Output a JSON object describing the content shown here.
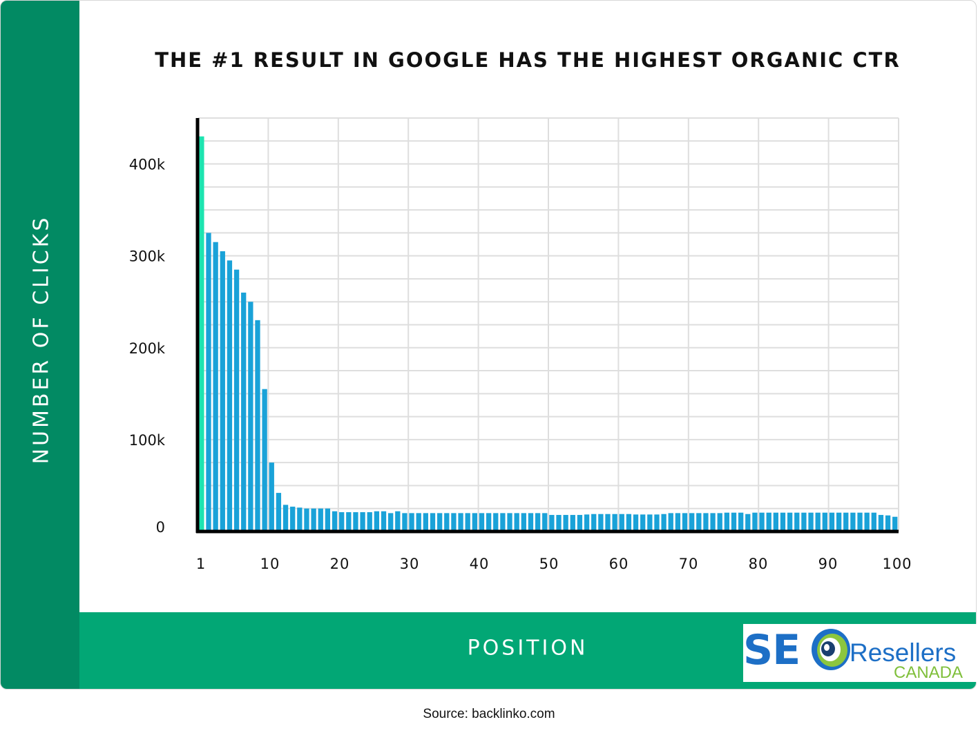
{
  "chart_data": {
    "type": "bar",
    "title": "THE #1 RESULT IN GOOGLE HAS THE HIGHEST ORGANIC CTR",
    "xlabel": "POSITION",
    "ylabel": "NUMBER OF CLICKS",
    "ylim": [
      0,
      450000
    ],
    "xlim": [
      1,
      100
    ],
    "grid": true,
    "legend": "none",
    "x_tick_labels": [
      "1",
      "10",
      "20",
      "30",
      "40",
      "50",
      "60",
      "70",
      "80",
      "90",
      "100"
    ],
    "y_ticks": [
      {
        "value": 0,
        "label": "0"
      },
      {
        "value": 100000,
        "label": "100k"
      },
      {
        "value": 200000,
        "label": "200k"
      },
      {
        "value": 300000,
        "label": "300k"
      },
      {
        "value": 400000,
        "label": "400k"
      }
    ],
    "colors": {
      "first_bar": "#1de4b0",
      "bars": "#1aa2d8",
      "axis": "#000000",
      "grid": "#dedede"
    },
    "x": [
      1,
      2,
      3,
      4,
      5,
      6,
      7,
      8,
      9,
      10,
      11,
      12,
      13,
      14,
      15,
      16,
      17,
      18,
      19,
      20,
      21,
      22,
      23,
      24,
      25,
      26,
      27,
      28,
      29,
      30,
      31,
      32,
      33,
      34,
      35,
      36,
      37,
      38,
      39,
      40,
      41,
      42,
      43,
      44,
      45,
      46,
      47,
      48,
      49,
      50,
      51,
      52,
      53,
      54,
      55,
      56,
      57,
      58,
      59,
      60,
      61,
      62,
      63,
      64,
      65,
      66,
      67,
      68,
      69,
      70,
      71,
      72,
      73,
      74,
      75,
      76,
      77,
      78,
      79,
      80,
      81,
      82,
      83,
      84,
      85,
      86,
      87,
      88,
      89,
      90,
      91,
      92,
      93,
      94,
      95,
      96,
      97,
      98,
      99,
      100
    ],
    "values": [
      430000,
      325000,
      315000,
      305000,
      295000,
      285000,
      260000,
      250000,
      230000,
      155000,
      75000,
      42000,
      29000,
      27000,
      26000,
      25000,
      25000,
      25000,
      25000,
      22000,
      21000,
      21000,
      21000,
      21000,
      21000,
      22000,
      22000,
      20000,
      22000,
      20000,
      20000,
      20000,
      20000,
      20000,
      20000,
      20000,
      20000,
      20000,
      20000,
      20000,
      20000,
      20000,
      20000,
      20000,
      20000,
      20000,
      20000,
      20000,
      20000,
      20000,
      18000,
      18000,
      18000,
      18000,
      18000,
      18500,
      19000,
      19000,
      19000,
      19000,
      19000,
      19000,
      18500,
      18500,
      18500,
      18500,
      19000,
      20000,
      20000,
      20000,
      20000,
      20000,
      20000,
      20000,
      20000,
      20500,
      20500,
      20500,
      19000,
      20500,
      20500,
      20500,
      20500,
      20500,
      20500,
      20500,
      20500,
      20500,
      20500,
      20500,
      20500,
      20500,
      20500,
      20500,
      20500,
      20500,
      20500,
      18000,
      17500,
      16000
    ]
  },
  "source": "Source: backlinko.com",
  "logo": {
    "seo": "SE",
    "resellers": "Resellers",
    "canada": "CANADA"
  }
}
